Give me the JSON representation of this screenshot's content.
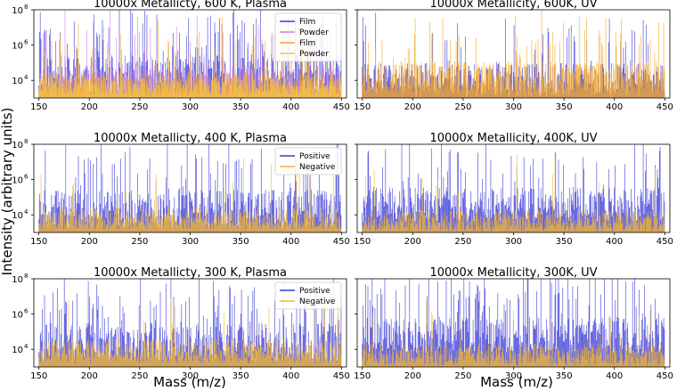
{
  "figure": {
    "ylabel": "Intensity (arbitrary units)",
    "xlabel": "Mass (m/z)"
  },
  "chart_data": [
    {
      "type": "bar",
      "title": "10000x Metallicty, 600 K, Plasma",
      "xlim": [
        145,
        455
      ],
      "ylim_log10": [
        3.0,
        8.0
      ],
      "y_scale": "log",
      "xticks": [
        150,
        200,
        250,
        300,
        350,
        400,
        450
      ],
      "yticks": [
        {
          "base": "10",
          "exp": "4",
          "value": 10000
        },
        {
          "base": "10",
          "exp": "6",
          "value": 1000000
        },
        {
          "base": "10",
          "exp": "8",
          "value": 100000000
        }
      ],
      "legend": {
        "placement": "top-right",
        "entries": [
          {
            "label": "Film",
            "color": "#3b3bd6"
          },
          {
            "label": "Powder",
            "color": "#d07ee8"
          },
          {
            "label": "Film",
            "color": "#f5a623"
          },
          {
            "label": "Powder",
            "color": "#f5c542"
          }
        ]
      },
      "series": [
        {
          "color": "#3b3bd6",
          "seed": 11,
          "base": 4.3,
          "spread": 1.6,
          "peaks": 0.22
        },
        {
          "color": "#d07ee8",
          "seed": 17,
          "base": 4.0,
          "spread": 1.3,
          "peaks": 0.1
        },
        {
          "color": "#f5a623",
          "seed": 23,
          "base": 3.8,
          "spread": 1.0,
          "peaks": 0.06
        },
        {
          "color": "#f5c542",
          "seed": 29,
          "base": 3.7,
          "spread": 0.8,
          "peaks": 0.04
        }
      ]
    },
    {
      "type": "bar",
      "title": "10000x Metallicity, 600K, UV",
      "xlim": [
        145,
        455
      ],
      "ylim_log10": [
        3.0,
        8.0
      ],
      "y_scale": "log",
      "xticks": [
        150,
        200,
        250,
        300,
        350,
        400,
        450
      ],
      "yticks": [
        {
          "base": "10",
          "exp": "4",
          "value": 10000
        },
        {
          "base": "10",
          "exp": "6",
          "value": 1000000
        },
        {
          "base": "10",
          "exp": "8",
          "value": 100000000
        }
      ],
      "legend": null,
      "series": [
        {
          "color": "#3b3bd6",
          "seed": 31,
          "base": 4.0,
          "spread": 1.4,
          "peaks": 0.1
        },
        {
          "color": "#f5a623",
          "seed": 37,
          "base": 4.2,
          "spread": 1.3,
          "peaks": 0.12
        }
      ]
    },
    {
      "type": "bar",
      "title": "10000x Metallicty, 400 K, Plasma",
      "xlim": [
        145,
        455
      ],
      "ylim_log10": [
        3.0,
        8.0
      ],
      "y_scale": "log",
      "xticks": [
        150,
        200,
        250,
        300,
        350,
        400,
        450
      ],
      "yticks": [
        {
          "base": "10",
          "exp": "4",
          "value": 10000
        },
        {
          "base": "10",
          "exp": "6",
          "value": 1000000
        },
        {
          "base": "10",
          "exp": "8",
          "value": 100000000
        }
      ],
      "legend": {
        "placement": "top-right",
        "entries": [
          {
            "label": "Positive",
            "color": "#3b3bd6"
          },
          {
            "label": "Negative",
            "color": "#f5b72c"
          }
        ]
      },
      "series": [
        {
          "color": "#3b3bd6",
          "seed": 41,
          "base": 4.3,
          "spread": 1.6,
          "peaks": 0.18
        },
        {
          "color": "#f5b72c",
          "seed": 43,
          "base": 3.8,
          "spread": 0.9,
          "peaks": 0.04
        }
      ]
    },
    {
      "type": "bar",
      "title": "10000x Metallicity, 400K, UV",
      "xlim": [
        145,
        455
      ],
      "ylim_log10": [
        3.0,
        8.0
      ],
      "y_scale": "log",
      "xticks": [
        150,
        200,
        250,
        300,
        350,
        400,
        450
      ],
      "yticks": [
        {
          "base": "10",
          "exp": "4",
          "value": 10000
        },
        {
          "base": "10",
          "exp": "6",
          "value": 1000000
        },
        {
          "base": "10",
          "exp": "8",
          "value": 100000000
        }
      ],
      "legend": null,
      "series": [
        {
          "color": "#3b3bd6",
          "seed": 47,
          "base": 4.6,
          "spread": 1.4,
          "peaks": 0.14
        },
        {
          "color": "#f5b72c",
          "seed": 53,
          "base": 3.7,
          "spread": 0.9,
          "peaks": 0.04
        }
      ]
    },
    {
      "type": "bar",
      "title": "10000x Metallicty, 300 K, Plasma",
      "xlim": [
        145,
        455
      ],
      "ylim_log10": [
        3.0,
        8.0
      ],
      "y_scale": "log",
      "xticks": [
        150,
        200,
        250,
        300,
        350,
        400,
        450
      ],
      "yticks": [
        {
          "base": "10",
          "exp": "4",
          "value": 10000
        },
        {
          "base": "10",
          "exp": "6",
          "value": 1000000
        },
        {
          "base": "10",
          "exp": "8",
          "value": 100000000
        }
      ],
      "legend": {
        "placement": "top-right",
        "entries": [
          {
            "label": "Positive",
            "color": "#3b3bd6"
          },
          {
            "label": "Negative",
            "color": "#f5b72c"
          }
        ]
      },
      "series": [
        {
          "color": "#3b3bd6",
          "seed": 59,
          "base": 4.4,
          "spread": 1.6,
          "peaks": 0.18
        },
        {
          "color": "#f5b72c",
          "seed": 61,
          "base": 3.9,
          "spread": 1.0,
          "peaks": 0.05
        }
      ]
    },
    {
      "type": "bar",
      "title": "10000x Metallicity, 300K, UV",
      "xlim": [
        145,
        455
      ],
      "ylim_log10": [
        3.0,
        8.0
      ],
      "y_scale": "log",
      "xticks": [
        150,
        200,
        250,
        300,
        350,
        400,
        450
      ],
      "yticks": [
        {
          "base": "10",
          "exp": "4",
          "value": 10000
        },
        {
          "base": "10",
          "exp": "6",
          "value": 1000000
        },
        {
          "base": "10",
          "exp": "8",
          "value": 100000000
        }
      ],
      "legend": null,
      "series": [
        {
          "color": "#3b3bd6",
          "seed": 67,
          "base": 4.8,
          "spread": 1.5,
          "peaks": 0.18
        },
        {
          "color": "#f5b72c",
          "seed": 71,
          "base": 3.7,
          "spread": 0.9,
          "peaks": 0.04
        }
      ]
    }
  ]
}
